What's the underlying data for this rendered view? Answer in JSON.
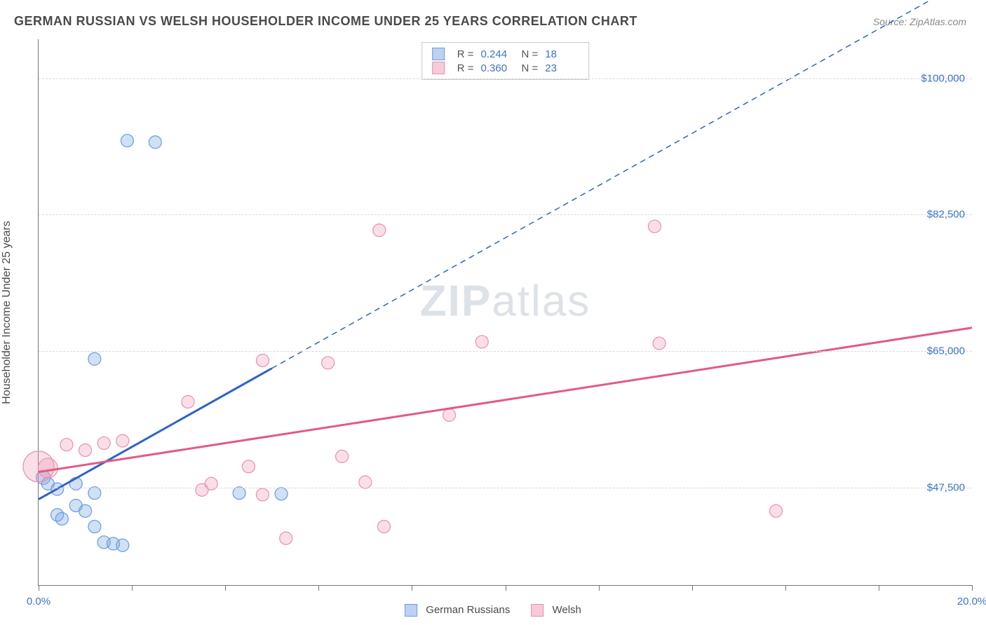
{
  "header": {
    "title": "GERMAN RUSSIAN VS WELSH HOUSEHOLDER INCOME UNDER 25 YEARS CORRELATION CHART",
    "source": "Source: ZipAtlas.com"
  },
  "chart": {
    "type": "scatter",
    "ylabel": "Householder Income Under 25 years",
    "watermark": "ZIPatlas",
    "background_color": "#ffffff",
    "grid_color": "#d8d8d8",
    "axis_color": "#777777",
    "x": {
      "min": 0.0,
      "max": 20.0,
      "ticks": [
        0.0,
        2.0,
        4.0,
        6.0,
        8.0,
        10.0,
        12.0,
        14.0,
        16.0,
        18.0,
        20.0
      ],
      "tick_labels_visible": [
        0.0,
        20.0
      ],
      "tick_label_format": "percent",
      "label_color": "#3b74c9"
    },
    "y": {
      "min": 35000,
      "max": 105000,
      "gridlines": [
        47500,
        65000,
        82500,
        100000
      ],
      "tick_labels": [
        "$47,500",
        "$65,000",
        "$82,500",
        "$100,000"
      ],
      "label_color": "#3b74c9"
    },
    "series": [
      {
        "name": "german_russians",
        "label": "German Russians",
        "color_fill": "rgba(120,165,225,0.35)",
        "color_stroke": "#6a9be0",
        "trend_color": "#2e63c8",
        "trend_dash_color": "#2e63c8",
        "marker_radius": 9,
        "r_value": "0.244",
        "n_value": "18",
        "trend": {
          "x1": 0.0,
          "y1": 46000,
          "x2": 5.0,
          "y2": 62800,
          "x2_dash": 20.0,
          "y2_dash": 113000
        },
        "points": [
          {
            "x": 0.1,
            "y": 48800,
            "r": 10
          },
          {
            "x": 0.2,
            "y": 48000,
            "r": 9
          },
          {
            "x": 0.4,
            "y": 47300,
            "r": 9
          },
          {
            "x": 0.4,
            "y": 44000,
            "r": 9
          },
          {
            "x": 0.5,
            "y": 43500,
            "r": 9
          },
          {
            "x": 0.8,
            "y": 45200,
            "r": 9
          },
          {
            "x": 0.8,
            "y": 48000,
            "r": 9
          },
          {
            "x": 1.0,
            "y": 44500,
            "r": 9
          },
          {
            "x": 1.2,
            "y": 46800,
            "r": 9
          },
          {
            "x": 1.2,
            "y": 42500,
            "r": 9
          },
          {
            "x": 1.4,
            "y": 40500,
            "r": 9
          },
          {
            "x": 1.6,
            "y": 40300,
            "r": 9
          },
          {
            "x": 1.8,
            "y": 40100,
            "r": 9
          },
          {
            "x": 1.2,
            "y": 64000,
            "r": 9
          },
          {
            "x": 1.9,
            "y": 92000,
            "r": 9
          },
          {
            "x": 2.5,
            "y": 91800,
            "r": 9
          },
          {
            "x": 4.3,
            "y": 46800,
            "r": 9
          },
          {
            "x": 5.2,
            "y": 46700,
            "r": 9
          }
        ]
      },
      {
        "name": "welsh",
        "label": "Welsh",
        "color_fill": "rgba(240,150,175,0.30)",
        "color_stroke": "#e98fb0",
        "trend_color": "#e15a84",
        "marker_radius": 9,
        "r_value": "0.360",
        "n_value": "23",
        "trend": {
          "x1": 0.0,
          "y1": 49500,
          "x2": 20.0,
          "y2": 68000
        },
        "points": [
          {
            "x": 0.0,
            "y": 50200,
            "r": 22
          },
          {
            "x": 0.2,
            "y": 50000,
            "r": 14
          },
          {
            "x": 0.6,
            "y": 53000,
            "r": 9
          },
          {
            "x": 1.0,
            "y": 52300,
            "r": 9
          },
          {
            "x": 1.4,
            "y": 53200,
            "r": 9
          },
          {
            "x": 1.8,
            "y": 53500,
            "r": 9
          },
          {
            "x": 3.2,
            "y": 58500,
            "r": 9
          },
          {
            "x": 3.5,
            "y": 47200,
            "r": 9
          },
          {
            "x": 3.7,
            "y": 48000,
            "r": 9
          },
          {
            "x": 4.5,
            "y": 50200,
            "r": 9
          },
          {
            "x": 4.8,
            "y": 63800,
            "r": 9
          },
          {
            "x": 5.3,
            "y": 41000,
            "r": 9
          },
          {
            "x": 4.8,
            "y": 46600,
            "r": 9
          },
          {
            "x": 6.2,
            "y": 63500,
            "r": 9
          },
          {
            "x": 6.5,
            "y": 51500,
            "r": 9
          },
          {
            "x": 7.0,
            "y": 48200,
            "r": 9
          },
          {
            "x": 7.3,
            "y": 80500,
            "r": 9
          },
          {
            "x": 7.4,
            "y": 42500,
            "r": 9
          },
          {
            "x": 8.8,
            "y": 56800,
            "r": 9
          },
          {
            "x": 9.5,
            "y": 66200,
            "r": 9
          },
          {
            "x": 13.2,
            "y": 81000,
            "r": 9
          },
          {
            "x": 13.3,
            "y": 66000,
            "r": 9
          },
          {
            "x": 15.8,
            "y": 44500,
            "r": 9
          }
        ]
      }
    ],
    "bottom_legend": {
      "items": [
        {
          "label": "German Russians",
          "fill": "rgba(120,165,225,0.5)",
          "stroke": "#6a9be0"
        },
        {
          "label": "Welsh",
          "fill": "rgba(240,150,175,0.5)",
          "stroke": "#e98fb0"
        }
      ]
    }
  }
}
